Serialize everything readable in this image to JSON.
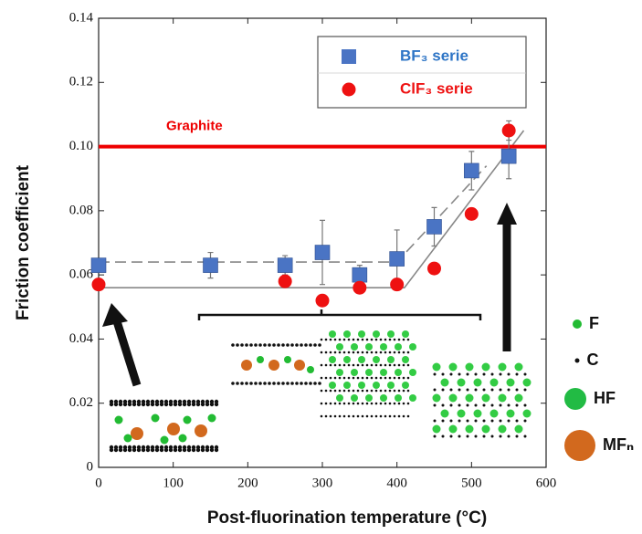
{
  "chart_data": {
    "type": "scatter",
    "xlabel": "Post-fluorination temperature (°C)",
    "ylabel": "Friction coefficient",
    "xlim": [
      0,
      600
    ],
    "ylim": [
      0,
      0.14
    ],
    "xticks": [
      0,
      100,
      200,
      300,
      400,
      500,
      600
    ],
    "yticks": [
      0,
      0.02,
      0.04,
      0.06,
      0.08,
      {
        "value": 0.1,
        "label": "0.10"
      },
      0.12,
      0.14
    ],
    "series": [
      {
        "name": "BF₃ serie",
        "color": "#4a74c4",
        "marker": "square",
        "label_color": "#2e75c6",
        "x": [
          0,
          150,
          250,
          300,
          350,
          400,
          450,
          500,
          550
        ],
        "values": [
          0.063,
          0.063,
          0.063,
          0.067,
          0.06,
          0.065,
          0.075,
          0.0925,
          0.097
        ],
        "errors": [
          0.002,
          0.004,
          0.003,
          0.01,
          0.003,
          0.009,
          0.006,
          0.006,
          0.007
        ]
      },
      {
        "name": "ClF₃ serie",
        "color": "#ee1111",
        "marker": "circle",
        "label_color": "#ee1111",
        "x": [
          0,
          250,
          300,
          350,
          400,
          450,
          500,
          550
        ],
        "values": [
          0.057,
          0.058,
          0.052,
          0.056,
          0.057,
          0.062,
          0.079,
          0.105
        ],
        "errors": [
          0,
          0,
          0,
          0,
          0,
          0,
          0,
          0.003
        ]
      }
    ],
    "reference_line": {
      "label": "Graphite",
      "value": 0.1,
      "color": "#ee0000"
    },
    "fits": [
      {
        "style": "solid",
        "x": [
          0,
          410,
          570
        ],
        "y": [
          0.056,
          0.056,
          0.105
        ]
      },
      {
        "style": "dashed",
        "x": [
          0,
          400,
          520
        ],
        "y": [
          0.064,
          0.064,
          0.094
        ]
      }
    ],
    "species_legend": [
      {
        "label": "F",
        "color": "#22bb33"
      },
      {
        "label": "C",
        "color": "#111111"
      },
      {
        "label": "HF",
        "color": "#22bb44"
      },
      {
        "label": "MFₙ",
        "color": "#d2691e"
      }
    ]
  }
}
